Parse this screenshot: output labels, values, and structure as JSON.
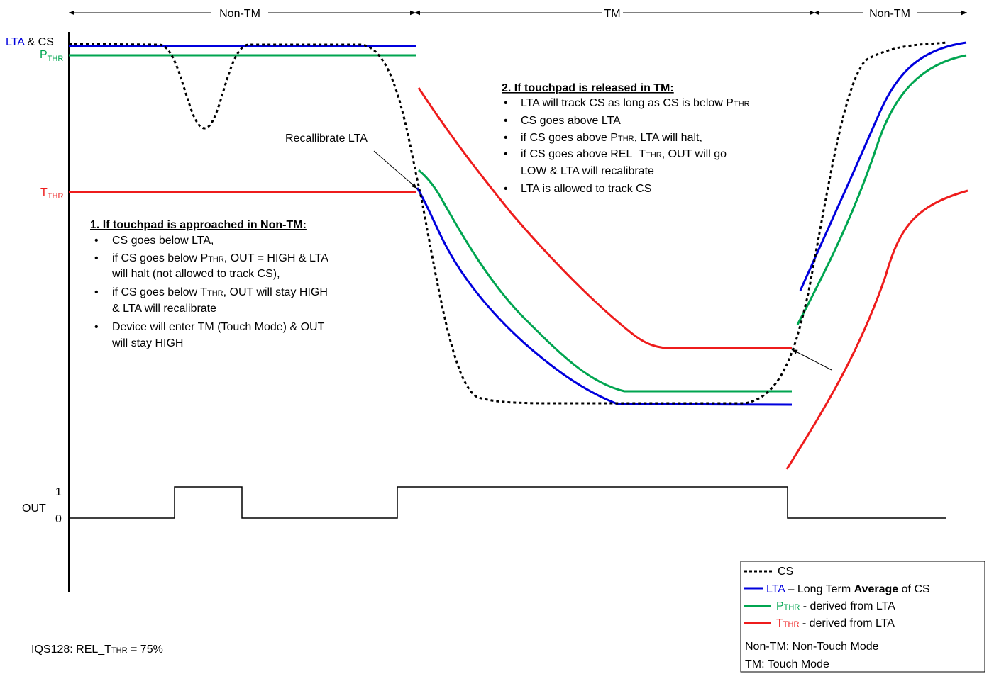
{
  "regions": {
    "left": "Non-TM",
    "middle": "TM",
    "right": "Non-TM"
  },
  "axis_labels": {
    "lta": "LTA",
    "amp": " & ",
    "cs": "CS",
    "p": "P",
    "t": "T",
    "thr": "THR",
    "out": "OUT",
    "one": "1",
    "zero": "0"
  },
  "annotations": {
    "recalibrate": "Recallibrate LTA"
  },
  "block1": {
    "heading": "1. If touchpad is approached in Non-TM:",
    "b1": "CS goes below LTA,",
    "b2a": "if CS goes below P",
    "b2b": ", OUT = HIGH & LTA",
    "b2c": "will halt (not allowed to track CS),",
    "b3a": "if CS goes below T",
    "b3b": ", OUT will stay HIGH",
    "b3c": "& LTA will recalibrate",
    "b4a": "Device will enter TM (Touch Mode) & OUT",
    "b4b": "will stay HIGH"
  },
  "block2": {
    "heading": "2. If touchpad is released in TM:",
    "b1a": "LTA will track CS as long as CS is below P",
    "b2": "CS goes above LTA",
    "b3a": "if CS goes above P",
    "b3b": ", LTA will halt,",
    "b4a": "if CS goes above REL_T",
    "b4b": ", OUT will go",
    "b4c": "LOW & LTA will recalibrate",
    "b5": "LTA is allowed to track CS"
  },
  "legend": {
    "cs": "CS",
    "lta": "LTA",
    "lta_desc_a": " – Long Term ",
    "lta_desc_b": "Average",
    "lta_desc_c": " of CS",
    "p": "P",
    "p_desc": " - derived from LTA",
    "t": "T",
    "t_desc": " - derived from LTA",
    "nontm": "Non-TM: Non-Touch Mode",
    "tm": "TM: Touch Mode"
  },
  "footer": {
    "a": "IQS128: REL_T",
    "b": " = 75%"
  },
  "colors": {
    "lta": "#0000dd",
    "p": "#00a550",
    "t": "#ee1c1c",
    "cs": "#000000"
  }
}
